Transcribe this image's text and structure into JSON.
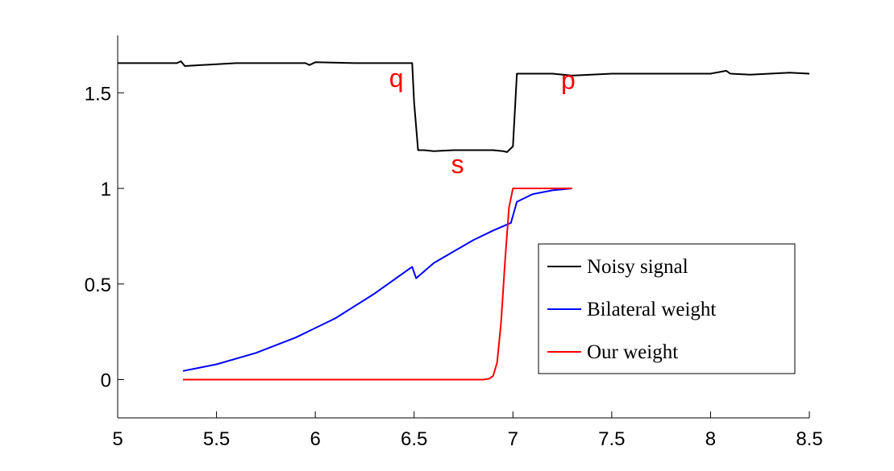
{
  "chart_data": {
    "type": "line",
    "title": "",
    "xlabel": "",
    "ylabel": "",
    "xlim": [
      5,
      8.5
    ],
    "ylim": [
      -0.2,
      1.8
    ],
    "grid": false,
    "legend_position": "lower-right",
    "x_ticks": [
      5,
      5.5,
      6,
      6.5,
      7,
      7.5,
      8,
      8.5
    ],
    "x_tick_labels": [
      "5",
      "5.5",
      "6",
      "6.5",
      "7",
      "7.5",
      "8",
      "8.5"
    ],
    "y_ticks": [
      0,
      0.5,
      1,
      1.5
    ],
    "y_tick_labels": [
      "0",
      "0.5",
      "1",
      "1.5"
    ],
    "series": [
      {
        "name": "Noisy signal",
        "color": "#000000",
        "x": [
          5.0,
          5.2,
          5.3,
          5.32,
          5.34,
          5.6,
          5.8,
          5.95,
          5.97,
          6.0,
          6.2,
          6.4,
          6.49,
          6.5,
          6.52,
          6.55,
          6.6,
          6.7,
          6.8,
          6.9,
          6.95,
          6.97,
          7.0,
          7.02,
          7.05,
          7.2,
          7.3,
          7.5,
          7.7,
          7.9,
          8.0,
          8.08,
          8.1,
          8.2,
          8.3,
          8.4,
          8.5
        ],
        "y": [
          1.655,
          1.655,
          1.655,
          1.665,
          1.64,
          1.655,
          1.655,
          1.655,
          1.645,
          1.66,
          1.655,
          1.655,
          1.655,
          1.45,
          1.2,
          1.2,
          1.195,
          1.2,
          1.2,
          1.2,
          1.195,
          1.19,
          1.22,
          1.6,
          1.6,
          1.6,
          1.59,
          1.6,
          1.6,
          1.6,
          1.6,
          1.615,
          1.6,
          1.595,
          1.6,
          1.605,
          1.6
        ]
      },
      {
        "name": "Bilateral weight",
        "color": "#0000ff",
        "x": [
          5.33,
          5.5,
          5.7,
          5.9,
          6.1,
          6.3,
          6.49,
          6.51,
          6.6,
          6.7,
          6.8,
          6.9,
          6.99,
          7.02,
          7.1,
          7.2,
          7.3
        ],
        "y": [
          0.045,
          0.08,
          0.14,
          0.22,
          0.32,
          0.45,
          0.59,
          0.53,
          0.61,
          0.67,
          0.73,
          0.78,
          0.82,
          0.93,
          0.97,
          0.99,
          1.0
        ]
      },
      {
        "name": "Our weight",
        "color": "#ff0000",
        "x": [
          5.33,
          6.0,
          6.5,
          6.85,
          6.88,
          6.9,
          6.92,
          6.94,
          6.96,
          6.98,
          7.0,
          7.1,
          7.2,
          7.3
        ],
        "y": [
          0,
          0,
          0,
          0,
          0.005,
          0.02,
          0.09,
          0.3,
          0.62,
          0.9,
          1.0,
          1.0,
          1.0,
          1.0
        ]
      }
    ],
    "annotations": [
      {
        "text": "q",
        "x": 6.41,
        "y": 1.53
      },
      {
        "text": "s",
        "x": 6.72,
        "y": 1.08
      },
      {
        "text": "p",
        "x": 7.28,
        "y": 1.52
      }
    ]
  }
}
